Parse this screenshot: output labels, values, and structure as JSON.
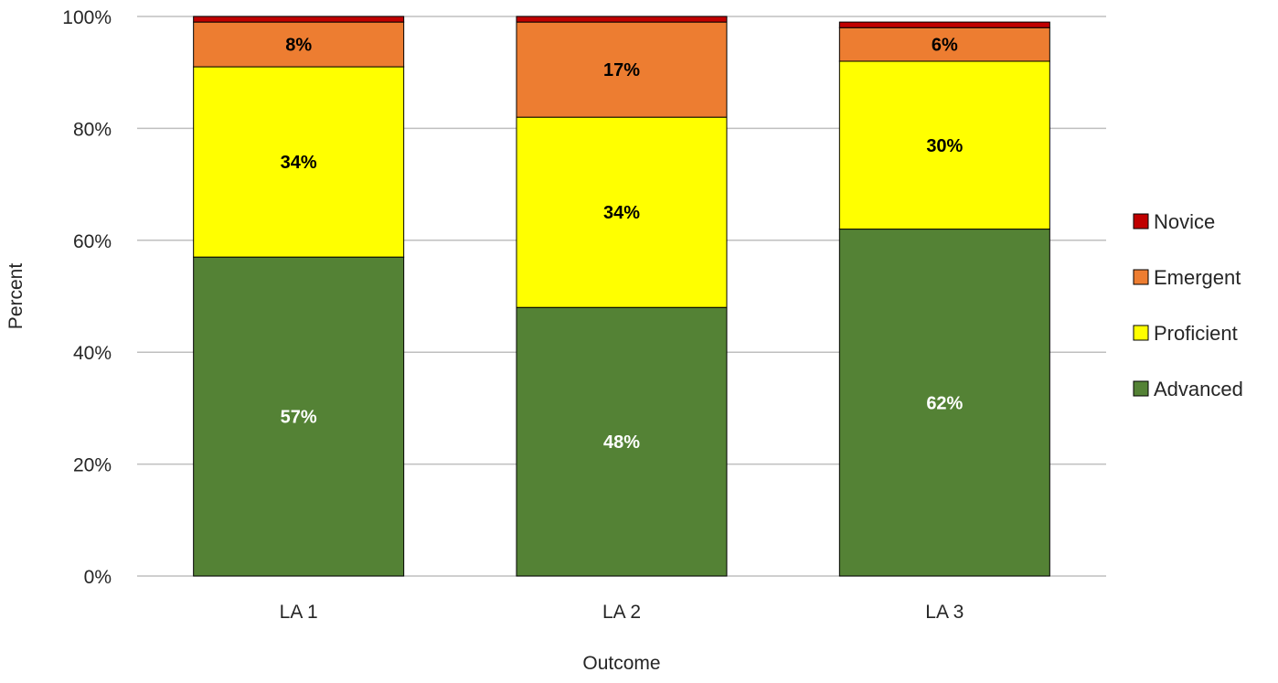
{
  "chart_data": {
    "type": "bar",
    "stacked": true,
    "percent_stacked": true,
    "title": "",
    "xlabel": "Outcome",
    "ylabel": "Percent",
    "categories": [
      "LA 1",
      "LA 2",
      "LA 3"
    ],
    "series": [
      {
        "name": "Advanced",
        "values": [
          57,
          48,
          62
        ],
        "labels": [
          "57%",
          "48%",
          "62%"
        ],
        "color": "#548235",
        "label_color": "#ffffff"
      },
      {
        "name": "Proficient",
        "values": [
          34,
          34,
          30
        ],
        "labels": [
          "34%",
          "34%",
          "30%"
        ],
        "color": "#ffff00",
        "label_color": "#000000"
      },
      {
        "name": "Emergent",
        "values": [
          8,
          17,
          6
        ],
        "labels": [
          "8%",
          "17%",
          "6%"
        ],
        "color": "#ed7d31",
        "label_color": "#000000"
      },
      {
        "name": "Novice",
        "values": [
          1,
          1,
          1
        ],
        "labels": [
          "",
          "",
          ""
        ],
        "color": "#c00000",
        "label_color": "#000000"
      }
    ],
    "ylim": [
      0,
      100
    ],
    "yticks": [
      0,
      20,
      40,
      60,
      80,
      100
    ],
    "ytick_labels": [
      "0%",
      "20%",
      "40%",
      "60%",
      "80%",
      "100%"
    ],
    "grid": true,
    "grid_color": "#bfbfbf",
    "legend": {
      "placement": "right",
      "order": [
        "Novice",
        "Emergent",
        "Proficient",
        "Advanced"
      ]
    }
  }
}
